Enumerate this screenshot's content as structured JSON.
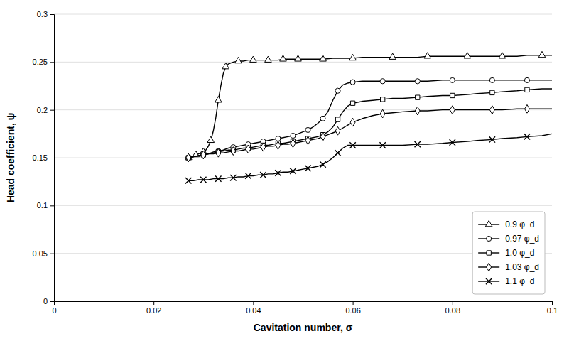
{
  "chart_data": {
    "type": "line",
    "xlabel": "Cavitation number, σ",
    "ylabel": "Head coefficient, ψ",
    "xlim": [
      0,
      0.1
    ],
    "ylim": [
      0,
      0.3
    ],
    "xticks": [
      0,
      0.02,
      0.04,
      0.06,
      0.08,
      0.1
    ],
    "yticks": [
      0,
      0.05,
      0.1,
      0.15,
      0.2,
      0.25,
      0.3
    ],
    "grid": "y",
    "legend": "lower right",
    "series": [
      {
        "name": "0.9 φ_d",
        "color": "black",
        "marker": "triangle",
        "x": [
          0.027,
          0.0275,
          0.028,
          0.0285,
          0.029,
          0.0295,
          0.03,
          0.0305,
          0.031,
          0.0315,
          0.032,
          0.0325,
          0.033,
          0.0335,
          0.034,
          0.0345,
          0.035,
          0.036,
          0.037,
          0.038,
          0.039,
          0.04,
          0.041,
          0.042,
          0.043,
          0.044,
          0.045,
          0.046,
          0.047,
          0.048,
          0.049,
          0.05,
          0.052,
          0.054,
          0.056,
          0.058,
          0.06,
          0.062,
          0.065,
          0.068,
          0.07,
          0.073,
          0.075,
          0.078,
          0.08,
          0.083,
          0.085,
          0.088,
          0.09,
          0.093,
          0.095,
          0.098,
          0.1
        ],
        "values": [
          0.15,
          0.151,
          0.152,
          0.153,
          0.154,
          0.155,
          0.156,
          0.158,
          0.162,
          0.168,
          0.178,
          0.192,
          0.21,
          0.225,
          0.238,
          0.245,
          0.248,
          0.25,
          0.251,
          0.251,
          0.252,
          0.252,
          0.252,
          0.252,
          0.252,
          0.252,
          0.252,
          0.253,
          0.253,
          0.253,
          0.253,
          0.253,
          0.253,
          0.253,
          0.254,
          0.254,
          0.254,
          0.255,
          0.255,
          0.255,
          0.255,
          0.255,
          0.256,
          0.256,
          0.256,
          0.256,
          0.256,
          0.256,
          0.256,
          0.256,
          0.257,
          0.257,
          0.257
        ]
      },
      {
        "name": "0.97 φ_d",
        "color": "black",
        "marker": "circle",
        "x": [
          0.027,
          0.028,
          0.029,
          0.03,
          0.031,
          0.032,
          0.033,
          0.034,
          0.035,
          0.036,
          0.037,
          0.038,
          0.039,
          0.04,
          0.041,
          0.042,
          0.043,
          0.044,
          0.045,
          0.046,
          0.047,
          0.048,
          0.049,
          0.05,
          0.051,
          0.052,
          0.053,
          0.054,
          0.055,
          0.056,
          0.057,
          0.058,
          0.059,
          0.06,
          0.062,
          0.064,
          0.066,
          0.068,
          0.07,
          0.073,
          0.075,
          0.078,
          0.08,
          0.083,
          0.085,
          0.088,
          0.09,
          0.093,
          0.095,
          0.098,
          0.1
        ],
        "values": [
          0.15,
          0.151,
          0.152,
          0.153,
          0.154,
          0.156,
          0.157,
          0.158,
          0.16,
          0.161,
          0.162,
          0.163,
          0.164,
          0.165,
          0.166,
          0.167,
          0.168,
          0.169,
          0.17,
          0.171,
          0.172,
          0.173,
          0.175,
          0.177,
          0.179,
          0.182,
          0.186,
          0.191,
          0.198,
          0.21,
          0.22,
          0.226,
          0.228,
          0.229,
          0.23,
          0.23,
          0.23,
          0.23,
          0.23,
          0.23,
          0.23,
          0.231,
          0.231,
          0.231,
          0.231,
          0.231,
          0.231,
          0.231,
          0.231,
          0.231,
          0.231
        ]
      },
      {
        "name": "1.0 φ_d",
        "color": "black",
        "marker": "square",
        "x": [
          0.027,
          0.028,
          0.029,
          0.03,
          0.031,
          0.032,
          0.033,
          0.034,
          0.035,
          0.036,
          0.037,
          0.038,
          0.039,
          0.04,
          0.041,
          0.042,
          0.043,
          0.044,
          0.045,
          0.046,
          0.047,
          0.048,
          0.049,
          0.05,
          0.051,
          0.052,
          0.053,
          0.054,
          0.055,
          0.056,
          0.057,
          0.058,
          0.059,
          0.06,
          0.062,
          0.064,
          0.066,
          0.068,
          0.07,
          0.073,
          0.075,
          0.078,
          0.08,
          0.083,
          0.085,
          0.088,
          0.09,
          0.093,
          0.095,
          0.098,
          0.1
        ],
        "values": [
          0.15,
          0.151,
          0.152,
          0.153,
          0.154,
          0.155,
          0.156,
          0.157,
          0.158,
          0.158,
          0.159,
          0.16,
          0.16,
          0.161,
          0.162,
          0.163,
          0.163,
          0.164,
          0.165,
          0.165,
          0.166,
          0.167,
          0.168,
          0.169,
          0.17,
          0.171,
          0.172,
          0.174,
          0.177,
          0.182,
          0.19,
          0.198,
          0.204,
          0.207,
          0.209,
          0.21,
          0.211,
          0.212,
          0.212,
          0.213,
          0.214,
          0.215,
          0.215,
          0.216,
          0.217,
          0.218,
          0.219,
          0.22,
          0.221,
          0.222,
          0.222
        ]
      },
      {
        "name": "1.03 φ_d",
        "color": "black",
        "marker": "diamond",
        "x": [
          0.027,
          0.028,
          0.029,
          0.03,
          0.031,
          0.032,
          0.033,
          0.034,
          0.035,
          0.036,
          0.037,
          0.038,
          0.039,
          0.04,
          0.041,
          0.042,
          0.043,
          0.044,
          0.045,
          0.046,
          0.047,
          0.048,
          0.049,
          0.05,
          0.051,
          0.052,
          0.053,
          0.054,
          0.055,
          0.056,
          0.057,
          0.058,
          0.059,
          0.06,
          0.062,
          0.064,
          0.066,
          0.068,
          0.07,
          0.073,
          0.075,
          0.078,
          0.08,
          0.083,
          0.085,
          0.088,
          0.09,
          0.093,
          0.095,
          0.098,
          0.1
        ],
        "values": [
          0.15,
          0.151,
          0.152,
          0.153,
          0.154,
          0.154,
          0.155,
          0.155,
          0.156,
          0.157,
          0.157,
          0.158,
          0.159,
          0.159,
          0.16,
          0.161,
          0.162,
          0.162,
          0.163,
          0.164,
          0.164,
          0.165,
          0.166,
          0.167,
          0.168,
          0.169,
          0.17,
          0.172,
          0.174,
          0.176,
          0.178,
          0.181,
          0.184,
          0.187,
          0.191,
          0.194,
          0.196,
          0.197,
          0.198,
          0.199,
          0.199,
          0.2,
          0.2,
          0.2,
          0.2,
          0.2,
          0.2,
          0.201,
          0.201,
          0.201,
          0.201
        ]
      },
      {
        "name": "1.1 φ_d",
        "color": "black",
        "marker": "x",
        "x": [
          0.027,
          0.028,
          0.029,
          0.03,
          0.031,
          0.032,
          0.033,
          0.034,
          0.035,
          0.036,
          0.037,
          0.038,
          0.039,
          0.04,
          0.041,
          0.042,
          0.043,
          0.044,
          0.045,
          0.046,
          0.047,
          0.048,
          0.049,
          0.05,
          0.051,
          0.052,
          0.053,
          0.054,
          0.055,
          0.056,
          0.057,
          0.058,
          0.059,
          0.06,
          0.062,
          0.064,
          0.066,
          0.068,
          0.07,
          0.073,
          0.075,
          0.078,
          0.08,
          0.083,
          0.085,
          0.088,
          0.09,
          0.093,
          0.095,
          0.098,
          0.1
        ],
        "values": [
          0.126,
          0.126,
          0.127,
          0.127,
          0.127,
          0.128,
          0.128,
          0.128,
          0.129,
          0.129,
          0.13,
          0.13,
          0.131,
          0.131,
          0.132,
          0.132,
          0.133,
          0.133,
          0.134,
          0.135,
          0.135,
          0.136,
          0.137,
          0.138,
          0.139,
          0.14,
          0.141,
          0.143,
          0.146,
          0.15,
          0.155,
          0.16,
          0.163,
          0.163,
          0.163,
          0.163,
          0.163,
          0.163,
          0.163,
          0.164,
          0.164,
          0.165,
          0.166,
          0.167,
          0.168,
          0.169,
          0.17,
          0.171,
          0.172,
          0.173,
          0.175
        ]
      }
    ]
  }
}
